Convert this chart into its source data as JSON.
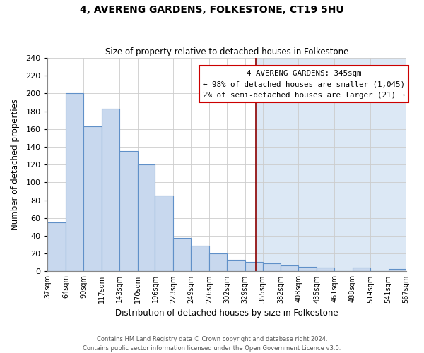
{
  "title": "4, AVERENG GARDENS, FOLKESTONE, CT19 5HU",
  "subtitle": "Size of property relative to detached houses in Folkestone",
  "xlabel": "Distribution of detached houses by size in Folkestone",
  "ylabel": "Number of detached properties",
  "bin_edges": [
    37,
    64,
    90,
    117,
    143,
    170,
    196,
    223,
    249,
    276,
    302,
    329,
    355,
    382,
    408,
    435,
    461,
    488,
    514,
    541,
    567
  ],
  "bin_labels": [
    "37sqm",
    "64sqm",
    "90sqm",
    "117sqm",
    "143sqm",
    "170sqm",
    "196sqm",
    "223sqm",
    "249sqm",
    "276sqm",
    "302sqm",
    "329sqm",
    "355sqm",
    "382sqm",
    "408sqm",
    "435sqm",
    "461sqm",
    "488sqm",
    "514sqm",
    "541sqm",
    "567sqm"
  ],
  "counts": [
    55,
    200,
    163,
    183,
    135,
    120,
    85,
    38,
    29,
    20,
    13,
    11,
    9,
    7,
    5,
    4,
    0,
    4,
    0,
    3
  ],
  "bar_color": "#c8d8ee",
  "bar_edge_color": "#6090c8",
  "property_value": 345,
  "vline_color": "#8b0000",
  "annotation_title": "4 AVERENG GARDENS: 345sqm",
  "annotation_line1": "← 98% of detached houses are smaller (1,045)",
  "annotation_line2": "2% of semi-detached houses are larger (21) →",
  "annotation_box_facecolor": "#ffffff",
  "annotation_box_edgecolor": "#cc0000",
  "ylim": [
    0,
    240
  ],
  "yticks": [
    0,
    20,
    40,
    60,
    80,
    100,
    120,
    140,
    160,
    180,
    200,
    220,
    240
  ],
  "grid_color": "#cccccc",
  "right_bg_color": "#dce8f5",
  "footer_line1": "Contains HM Land Registry data © Crown copyright and database right 2024.",
  "footer_line2": "Contains public sector information licensed under the Open Government Licence v3.0."
}
